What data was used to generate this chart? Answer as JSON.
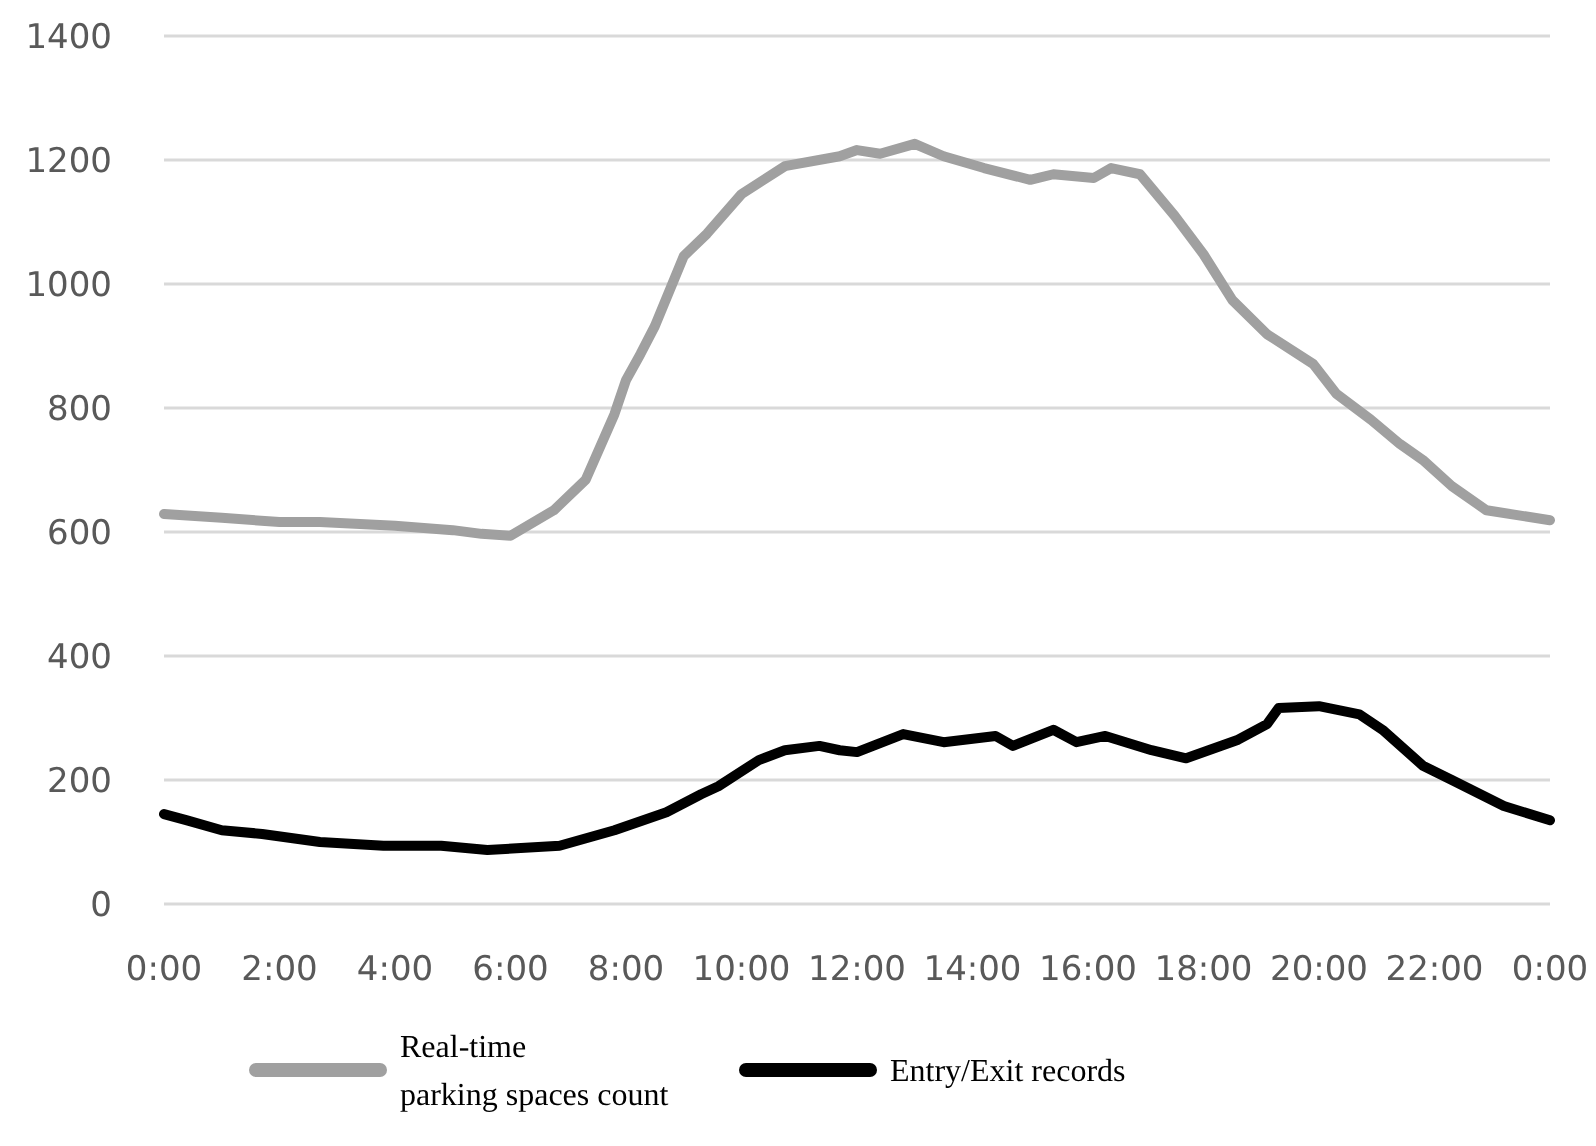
{
  "chart_data": {
    "type": "line",
    "x": [
      0,
      0.4,
      1,
      1.7,
      2.7,
      3.8,
      4.8,
      5.6,
      6.85,
      7.8,
      8.7,
      9.3,
      9.6,
      10.3,
      10.75,
      11.35,
      11.7,
      12,
      12.8,
      13.5,
      14.4,
      14.7,
      15.4,
      15.8,
      16.3,
      17.1,
      17.7,
      18.6,
      19.1,
      19.3,
      20,
      20.7,
      21.1,
      21.8,
      22.3,
      23.2,
      24
    ],
    "xlim": [
      0,
      24
    ],
    "xticks": [
      {
        "value": 0,
        "label": "0:00"
      },
      {
        "value": 2,
        "label": "2:00"
      },
      {
        "value": 4,
        "label": "4:00"
      },
      {
        "value": 6,
        "label": "6:00"
      },
      {
        "value": 8,
        "label": "8:00"
      },
      {
        "value": 10,
        "label": "10:00"
      },
      {
        "value": 12,
        "label": "12:00"
      },
      {
        "value": 14,
        "label": "14:00"
      },
      {
        "value": 16,
        "label": "16:00"
      },
      {
        "value": 18,
        "label": "18:00"
      },
      {
        "value": 20,
        "label": "20:00"
      },
      {
        "value": 22,
        "label": "22:00"
      },
      {
        "value": 24,
        "label": "0:00"
      }
    ],
    "ylim": [
      0,
      1400
    ],
    "yticks": [
      0,
      200,
      400,
      600,
      800,
      1000,
      1200,
      1400
    ],
    "grid": "y",
    "legend": "bottom",
    "line_style": "solid",
    "marker": "none",
    "series": [
      {
        "name": "Real-time\nparking spaces count",
        "color": "#a0a0a0",
        "x": [
          0,
          1,
          2,
          2.7,
          4,
          5,
          5.5,
          6,
          6.75,
          7.3,
          7.8,
          8,
          8.25,
          8.5,
          9,
          9.4,
          10,
          10.75,
          11.7,
          12,
          12.4,
          13,
          13.5,
          14.2,
          15,
          15.4,
          16.1,
          16.4,
          16.9,
          17.5,
          18,
          18.5,
          19.1,
          19.9,
          20.3,
          20.9,
          21.4,
          21.8,
          22.3,
          22.9,
          24
        ],
        "values": [
          629,
          623,
          616,
          616,
          610,
          603,
          597,
          594,
          635,
          684,
          790,
          845,
          887,
          932,
          1045,
          1081,
          1145,
          1190,
          1206,
          1216,
          1210,
          1226,
          1206,
          1187,
          1168,
          1177,
          1171,
          1187,
          1177,
          1110,
          1048,
          974,
          919,
          871,
          823,
          781,
          742,
          716,
          674,
          635,
          619
        ]
      },
      {
        "name": "Entry/Exit records",
        "color": "#000000",
        "values": [
          145,
          135,
          119,
          113,
          100,
          94,
          94,
          87,
          94,
          119,
          148,
          177,
          190,
          232,
          248,
          255,
          248,
          245,
          274,
          261,
          271,
          255,
          281,
          261,
          271,
          248,
          235,
          265,
          290,
          316,
          319,
          306,
          281,
          223,
          200,
          158,
          135
        ]
      }
    ]
  }
}
